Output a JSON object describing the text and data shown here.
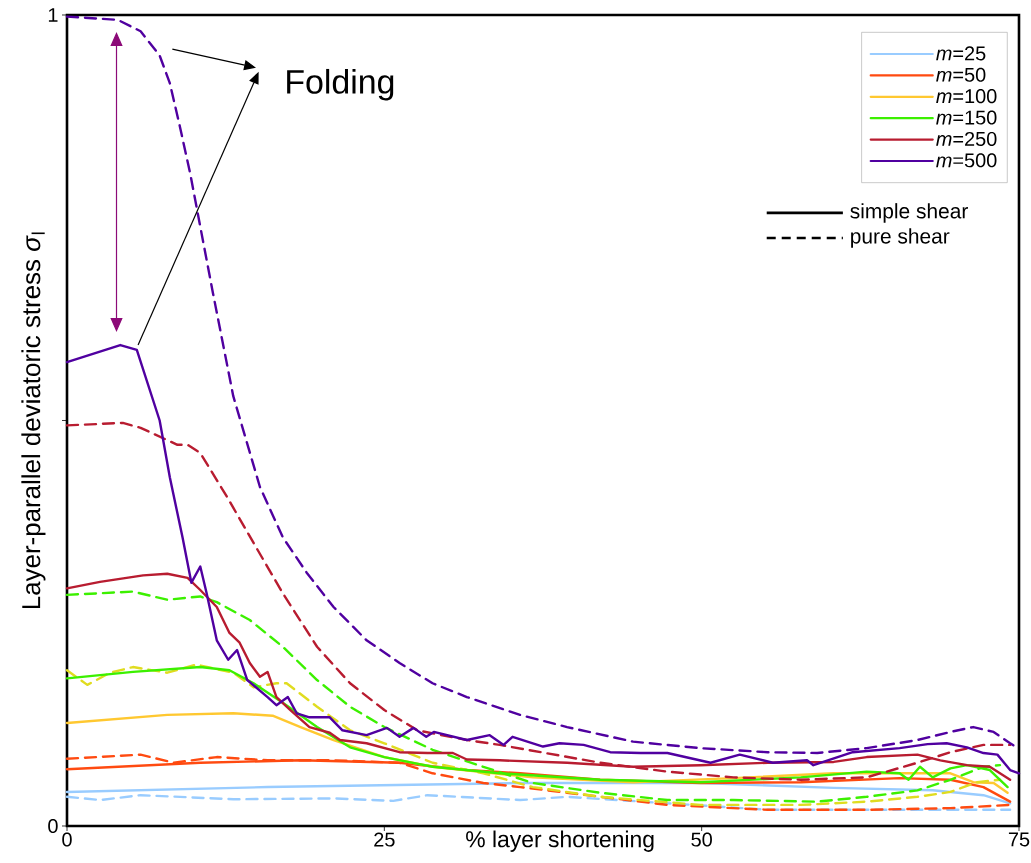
{
  "chart_data": {
    "type": "line",
    "xlabel": "% layer shortening",
    "ylabel": "Layer-parallel deviatoric stress *σ*$_{l}$",
    "xlim": [
      0,
      75
    ],
    "ylim": [
      0,
      1
    ],
    "xticks": [
      0,
      25,
      50,
      75
    ],
    "yticks": [
      0,
      {
        "value": 0.5,
        "label": null
      },
      1
    ],
    "grid": false,
    "marker": "none",
    "legend": "top right",
    "annotations": [
      "Folding",
      "simple shear",
      "pure shear"
    ],
    "series": [
      {
        "name": "*m*=25",
        "color": "#99ccff",
        "line_style": "solid",
        "x": [
          0,
          15.8,
          35.7,
          49.9,
          60.4,
          68.2,
          72.2,
          74.3
        ],
        "values": [
          0.042,
          0.048,
          0.053,
          0.053,
          0.047,
          0.044,
          0.038,
          0.028
        ]
      },
      {
        "color": "#99ccff",
        "line_style": "dashed",
        "x": [
          0,
          2.6,
          5.8,
          13.1,
          21,
          25.7,
          28.4,
          35.7,
          39.4,
          47.3,
          55.2,
          63,
          74.3
        ],
        "values": [
          0.036,
          0.032,
          0.038,
          0.033,
          0.034,
          0.031,
          0.038,
          0.032,
          0.036,
          0.028,
          0.02,
          0.02,
          0.02
        ]
      },
      {
        "name": "*m*=50",
        "color": "#ff4a10",
        "line_style": "solid",
        "x": [
          0,
          10.5,
          18.4,
          26.2,
          31.5,
          35.7,
          42,
          49.9,
          57.8,
          65.6,
          69.6,
          72.2,
          74.3
        ],
        "values": [
          0.07,
          0.078,
          0.081,
          0.078,
          0.069,
          0.065,
          0.057,
          0.053,
          0.054,
          0.059,
          0.057,
          0.048,
          0.03
        ]
      },
      {
        "color": "#ff4a10",
        "line_style": "dashed",
        "x": [
          0,
          5.8,
          8.4,
          11.8,
          15.8,
          21,
          26.2,
          28.8,
          32.8,
          35.7,
          39.4,
          47.3,
          55.2,
          63,
          69.6,
          74.3
        ],
        "values": [
          0.083,
          0.088,
          0.078,
          0.085,
          0.081,
          0.081,
          0.078,
          0.065,
          0.053,
          0.048,
          0.041,
          0.026,
          0.02,
          0.02,
          0.022,
          0.026
        ]
      },
      {
        "name": "*m*=100",
        "color": "#ffc830",
        "line_style": "solid",
        "x": [
          0,
          7.9,
          13.1,
          16.2,
          18.4,
          21,
          25,
          28.8,
          36.7,
          44.6,
          52.5,
          60.4,
          65.6,
          69.6,
          71.4,
          73,
          74.1
        ],
        "values": [
          0.127,
          0.137,
          0.139,
          0.136,
          0.122,
          0.106,
          0.085,
          0.073,
          0.06,
          0.054,
          0.059,
          0.065,
          0.065,
          0.065,
          0.054,
          0.053,
          0.041
        ]
      },
      {
        "color": "#e0dc20",
        "line_style": "dashed",
        "x": [
          0,
          1.6,
          3.4,
          5.2,
          7.9,
          10.2,
          13.1,
          14.7,
          16.5,
          17.3,
          19.7,
          22.3,
          25,
          28.8,
          32.8,
          36.7,
          42,
          49.9,
          57.8,
          63,
          67,
          69.6,
          71.7,
          73.5
        ],
        "values": [
          0.192,
          0.174,
          0.189,
          0.196,
          0.189,
          0.199,
          0.189,
          0.171,
          0.176,
          0.176,
          0.147,
          0.118,
          0.102,
          0.078,
          0.065,
          0.048,
          0.036,
          0.026,
          0.026,
          0.03,
          0.036,
          0.042,
          0.054,
          0.057
        ]
      },
      {
        "name": "*m*=150",
        "color": "#3cf000",
        "line_style": "solid",
        "x": [
          0,
          5.2,
          10.5,
          12.8,
          14.7,
          17,
          19.7,
          22.3,
          25,
          28.8,
          34.1,
          42,
          49.9,
          57.8,
          63,
          65.6,
          66.3,
          67.2,
          68.2,
          69.6,
          70.9,
          72.7,
          74.1
        ],
        "values": [
          0.182,
          0.19,
          0.196,
          0.192,
          0.176,
          0.152,
          0.122,
          0.097,
          0.085,
          0.073,
          0.065,
          0.057,
          0.054,
          0.06,
          0.067,
          0.065,
          0.057,
          0.073,
          0.06,
          0.071,
          0.075,
          0.069,
          0.048
        ]
      },
      {
        "color": "#3cf000",
        "line_style": "dashed",
        "x": [
          0,
          5.2,
          7.9,
          10.5,
          11.8,
          14.4,
          17,
          19.7,
          22.3,
          25,
          28.8,
          32.8,
          36.7,
          42,
          47.3,
          52.5,
          59.1,
          63,
          67,
          69.6,
          72.2,
          73.5
        ],
        "values": [
          0.285,
          0.289,
          0.279,
          0.283,
          0.276,
          0.254,
          0.221,
          0.18,
          0.147,
          0.122,
          0.094,
          0.073,
          0.053,
          0.041,
          0.032,
          0.032,
          0.03,
          0.036,
          0.044,
          0.057,
          0.073,
          0.075
        ]
      },
      {
        "name": "*m*=250",
        "color": "#b81c30",
        "line_style": "solid",
        "x": [
          0,
          2.6,
          6,
          7.9,
          9.5,
          10.5,
          11.8,
          12.8,
          13.6,
          14.4,
          15.2,
          15.8,
          16.5,
          17.6,
          19.1,
          20.7,
          21.5,
          23.6,
          26.2,
          28.4,
          30.4,
          31.5,
          34.1,
          39.4,
          44.6,
          49.9,
          55.2,
          60.4,
          63,
          67,
          68.8,
          70.9,
          72.7,
          74.3
        ],
        "values": [
          0.293,
          0.301,
          0.309,
          0.311,
          0.306,
          0.291,
          0.27,
          0.238,
          0.226,
          0.201,
          0.184,
          0.19,
          0.159,
          0.143,
          0.122,
          0.115,
          0.106,
          0.102,
          0.091,
          0.09,
          0.09,
          0.082,
          0.081,
          0.078,
          0.073,
          0.075,
          0.078,
          0.079,
          0.085,
          0.088,
          0.081,
          0.075,
          0.073,
          0.057
        ]
      },
      {
        "color": "#b81c30",
        "line_style": "dashed",
        "x": [
          0,
          4.4,
          5.8,
          8.7,
          9.5,
          10.5,
          12.6,
          14.7,
          17,
          19.7,
          22.3,
          25,
          27.6,
          31.5,
          34.1,
          42,
          47.3,
          52.5,
          57.8,
          63,
          67,
          69.6,
          72.2,
          74.3
        ],
        "values": [
          0.494,
          0.497,
          0.491,
          0.47,
          0.47,
          0.46,
          0.406,
          0.349,
          0.287,
          0.221,
          0.176,
          0.143,
          0.118,
          0.106,
          0.1,
          0.078,
          0.067,
          0.06,
          0.057,
          0.06,
          0.078,
          0.091,
          0.1,
          0.1
        ]
      },
      {
        "name": "*m*=500",
        "color": "#5000a0",
        "line_style": "solid",
        "x": [
          0,
          4.2,
          5.5,
          7.3,
          8.1,
          9.1,
          9.8,
          10.5,
          11,
          11.8,
          12.7,
          13.4,
          14.2,
          15.8,
          16.5,
          17.4,
          18.1,
          19.1,
          20.7,
          21.7,
          23.6,
          25.2,
          26.2,
          27.3,
          28.3,
          28.9,
          31.5,
          33.3,
          34.4,
          35.1,
          37.5,
          38.8,
          40.7,
          42.8,
          45.2,
          47.3,
          50.7,
          53,
          55.6,
          58.3,
          58.8,
          61.9,
          65.6,
          67.8,
          69.3,
          70.9,
          72.2,
          73.3,
          74.3,
          75
        ],
        "values": [
          0.572,
          0.593,
          0.587,
          0.5,
          0.43,
          0.356,
          0.3,
          0.32,
          0.287,
          0.229,
          0.205,
          0.217,
          0.18,
          0.159,
          0.149,
          0.159,
          0.139,
          0.134,
          0.134,
          0.118,
          0.112,
          0.121,
          0.11,
          0.121,
          0.11,
          0.116,
          0.106,
          0.112,
          0.1,
          0.11,
          0.098,
          0.102,
          0.1,
          0.091,
          0.09,
          0.09,
          0.078,
          0.088,
          0.078,
          0.081,
          0.075,
          0.091,
          0.096,
          0.101,
          0.102,
          0.097,
          0.09,
          0.088,
          0.069,
          0.065
        ]
      },
      {
        "color": "#5000a0",
        "line_style": "dashed",
        "x": [
          0,
          4,
          5.8,
          7.3,
          8.1,
          8.9,
          9.7,
          10.5,
          11.5,
          13.1,
          15.2,
          17,
          18.9,
          21,
          23.6,
          26.2,
          28.8,
          31.5,
          35.7,
          39.4,
          44.6,
          49.9,
          55.2,
          59.1,
          63,
          67,
          69.6,
          71.4,
          73,
          74.3,
          75
        ],
        "values": [
          0.998,
          0.994,
          0.98,
          0.95,
          0.916,
          0.862,
          0.805,
          0.739,
          0.657,
          0.53,
          0.418,
          0.356,
          0.312,
          0.27,
          0.229,
          0.201,
          0.176,
          0.159,
          0.137,
          0.122,
          0.104,
          0.096,
          0.091,
          0.09,
          0.096,
          0.106,
          0.116,
          0.122,
          0.116,
          0.102,
          0.095
        ]
      }
    ]
  }
}
